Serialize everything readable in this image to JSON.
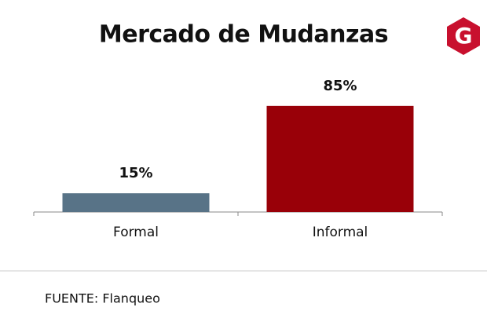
{
  "chart_data": {
    "type": "bar",
    "title": "Mercado de Mudanzas",
    "categories": [
      "Formal",
      "Informal"
    ],
    "values": [
      15,
      85
    ],
    "value_labels": [
      "15%",
      "85%"
    ],
    "colors": [
      "#587387",
      "#990008"
    ],
    "source": "FUENTE: Flanqueo",
    "logo": "G"
  }
}
